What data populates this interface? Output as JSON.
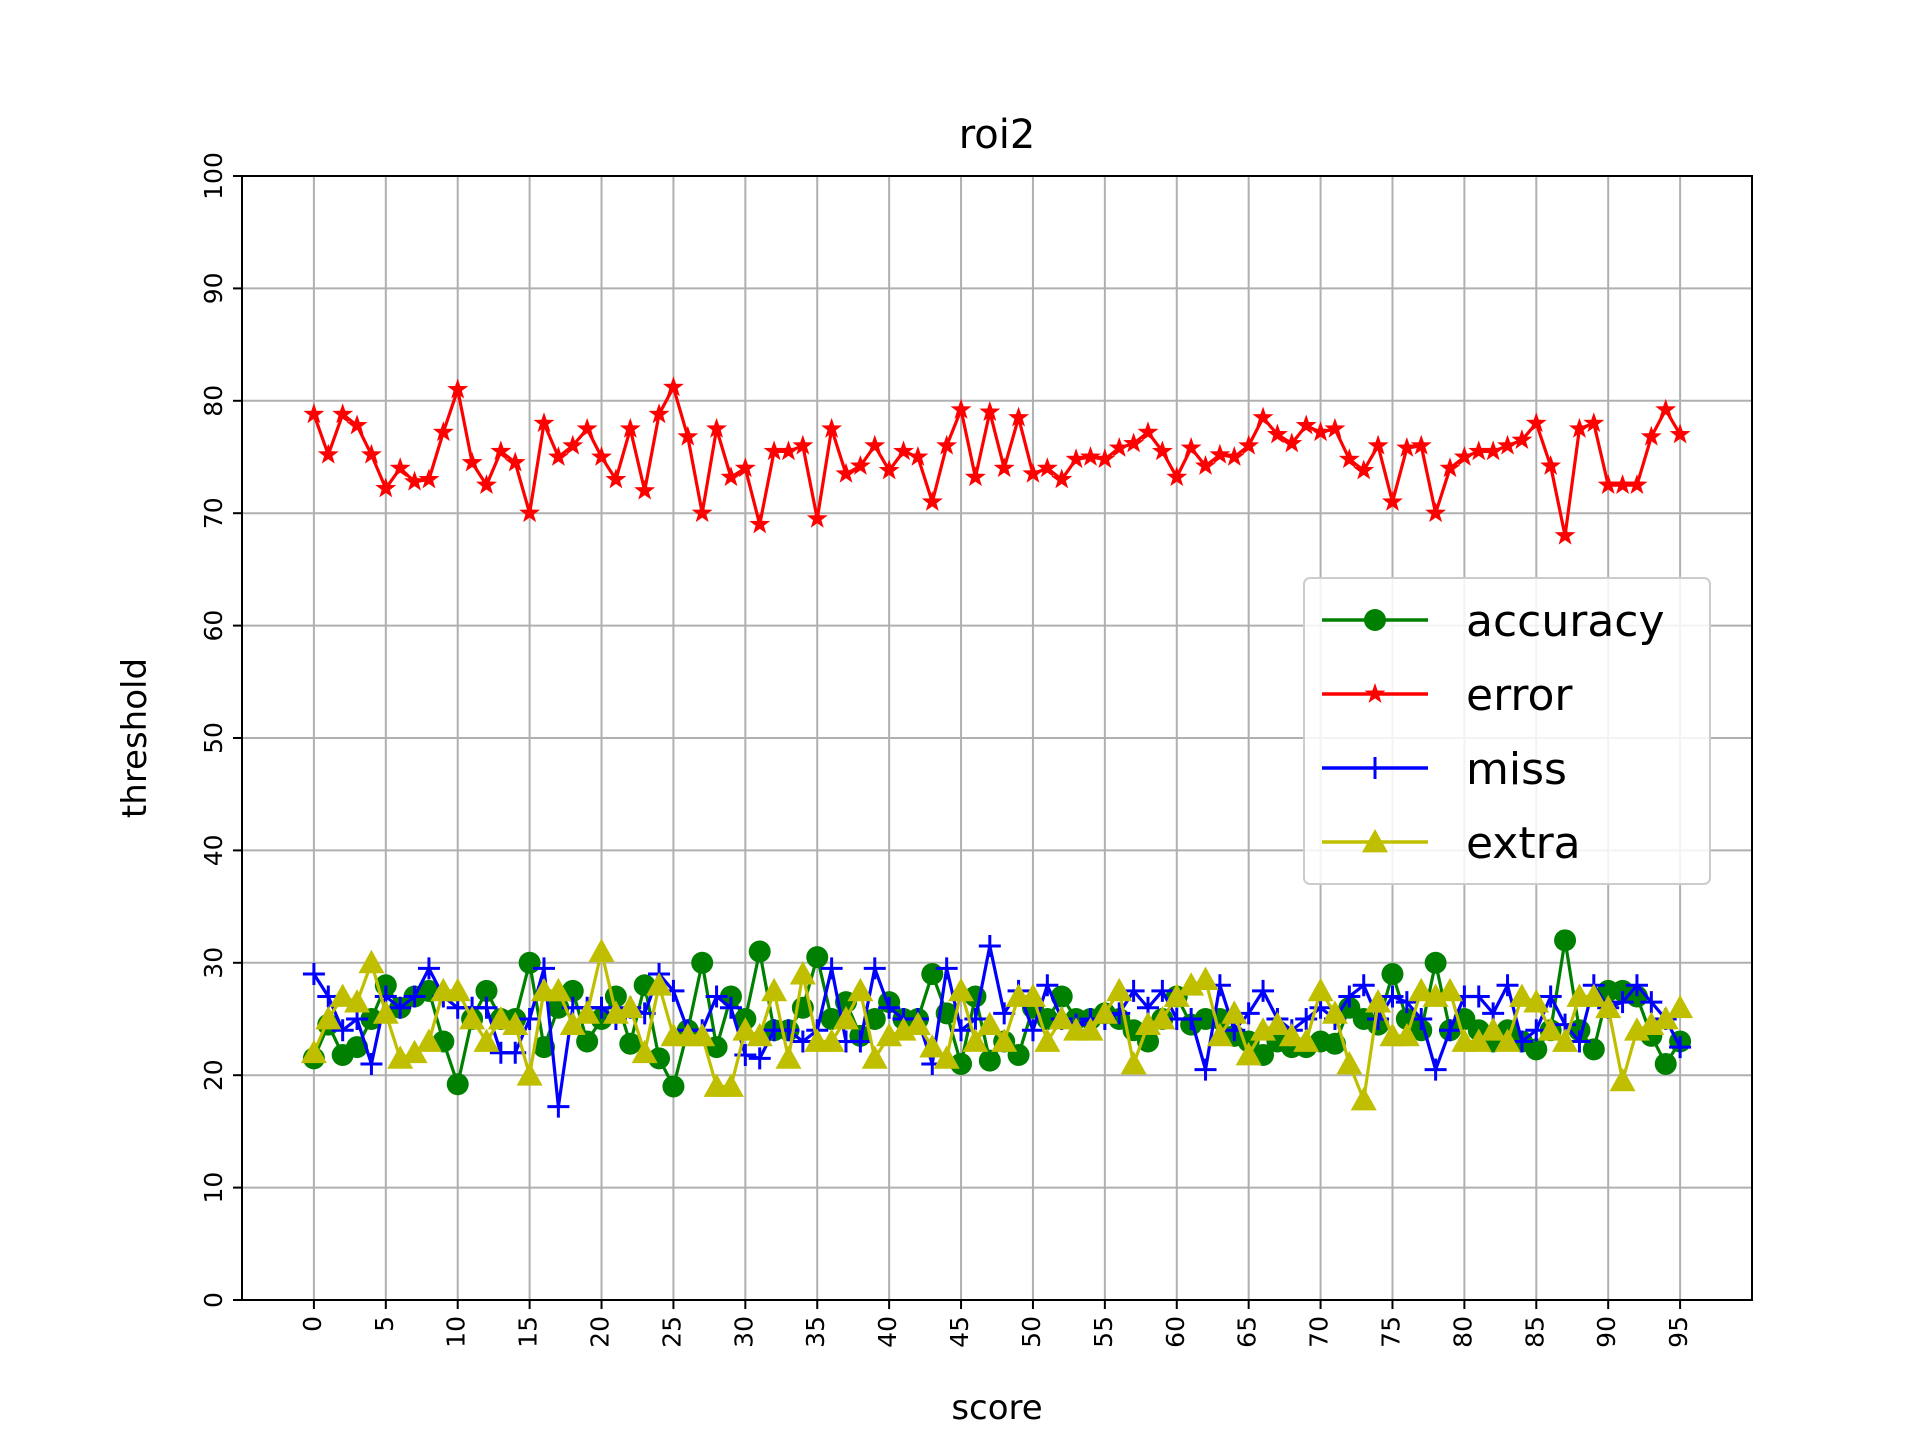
{
  "chart_data": {
    "type": "line",
    "title": "roi2",
    "xlabel": "score",
    "ylabel": "threshold",
    "xlim": [
      -5,
      100
    ],
    "ylim": [
      0,
      100
    ],
    "xticks": [
      0,
      5,
      10,
      15,
      20,
      25,
      30,
      35,
      40,
      45,
      50,
      55,
      60,
      65,
      70,
      75,
      80,
      85,
      90,
      95
    ],
    "yticks": [
      0,
      10,
      20,
      30,
      40,
      50,
      60,
      70,
      80,
      90,
      100
    ],
    "grid": true,
    "legend_position": "center-right",
    "x": [
      0,
      1,
      2,
      3,
      4,
      5,
      6,
      7,
      8,
      9,
      10,
      11,
      12,
      13,
      14,
      15,
      16,
      17,
      18,
      19,
      20,
      21,
      22,
      23,
      24,
      25,
      26,
      27,
      28,
      29,
      30,
      31,
      32,
      33,
      34,
      35,
      36,
      37,
      38,
      39,
      40,
      41,
      42,
      43,
      44,
      45,
      46,
      47,
      48,
      49,
      50,
      51,
      52,
      53,
      54,
      55,
      56,
      57,
      58,
      59,
      60,
      61,
      62,
      63,
      64,
      65,
      66,
      67,
      68,
      69,
      70,
      71,
      72,
      73,
      74,
      75,
      76,
      77,
      78,
      79,
      80,
      81,
      82,
      83,
      84,
      85,
      86,
      87,
      88,
      89,
      90,
      91,
      92,
      93,
      94,
      95
    ],
    "series": [
      {
        "name": "accuracy",
        "color": "#008000",
        "marker": "circle",
        "values": [
          21.5,
          24.5,
          21.8,
          22.5,
          25.0,
          28.0,
          26.0,
          27.0,
          27.5,
          23.0,
          19.2,
          25.0,
          27.5,
          25.0,
          25.0,
          30.0,
          22.5,
          26.0,
          27.5,
          23.0,
          25.0,
          27.0,
          22.8,
          28.0,
          21.5,
          19.0,
          24.0,
          30.0,
          22.5,
          27.0,
          25.0,
          31.0,
          24.0,
          24.0,
          26.0,
          30.5,
          25.0,
          26.5,
          23.5,
          25.0,
          26.5,
          25.0,
          25.0,
          29.0,
          25.5,
          21.0,
          27.0,
          21.3,
          23.0,
          21.8,
          26.0,
          25.0,
          27.0,
          25.0,
          25.0,
          25.5,
          25.0,
          24.0,
          23.0,
          25.0,
          27.0,
          24.5,
          25.0,
          25.0,
          23.5,
          23.0,
          21.8,
          23.0,
          22.5,
          22.5,
          23.0,
          22.8,
          26.0,
          25.0,
          24.5,
          29.0,
          25.0,
          24.0,
          30.0,
          24.0,
          25.0,
          24.0,
          23.0,
          24.0,
          23.0,
          22.3,
          24.0,
          32.0,
          24.0,
          22.3,
          27.5,
          27.5,
          27.0,
          23.5,
          21.0,
          23.0
        ]
      },
      {
        "name": "error",
        "color": "#ff0000",
        "marker": "star",
        "values": [
          78.8,
          75.2,
          78.8,
          77.8,
          75.2,
          72.2,
          74.0,
          72.8,
          73.0,
          77.2,
          81.0,
          74.5,
          72.5,
          75.5,
          74.5,
          70.0,
          78.0,
          75.0,
          76.0,
          77.5,
          75.0,
          73.0,
          77.5,
          72.0,
          78.8,
          81.2,
          76.8,
          70.0,
          77.5,
          73.2,
          74.0,
          69.0,
          75.5,
          75.5,
          76.0,
          69.5,
          77.5,
          73.5,
          74.2,
          76.0,
          73.8,
          75.5,
          75.0,
          71.0,
          76.0,
          79.2,
          73.2,
          79.0,
          74.0,
          78.5,
          73.5,
          74.0,
          73.0,
          74.8,
          75.0,
          74.8,
          75.8,
          76.2,
          77.2,
          75.5,
          73.2,
          75.8,
          74.2,
          75.2,
          75.0,
          76.0,
          78.5,
          77.0,
          76.2,
          77.8,
          77.2,
          77.5,
          74.8,
          73.8,
          76.0,
          71.0,
          75.8,
          76.0,
          70.0,
          74.0,
          75.0,
          75.5,
          75.5,
          76.0,
          76.5,
          78.0,
          74.2,
          68.0,
          77.5,
          78.0,
          72.5,
          72.5,
          72.5,
          76.8,
          79.2,
          77.0
        ]
      },
      {
        "name": "miss",
        "color": "#0000ff",
        "marker": "plus",
        "values": [
          29.0,
          27.0,
          24.0,
          25.0,
          21.0,
          27.0,
          26.0,
          27.0,
          29.5,
          27.0,
          26.0,
          26.0,
          26.0,
          22.0,
          22.0,
          25.0,
          29.5,
          17.2,
          26.0,
          26.0,
          26.0,
          25.0,
          26.0,
          25.5,
          29.0,
          27.5,
          24.0,
          24.0,
          27.0,
          26.0,
          21.8,
          21.5,
          24.0,
          24.0,
          23.0,
          24.0,
          29.5,
          23.0,
          23.0,
          29.5,
          26.0,
          25.0,
          25.0,
          21.0,
          29.5,
          24.0,
          25.0,
          31.5,
          25.5,
          27.5,
          24.0,
          28.0,
          25.0,
          24.5,
          25.0,
          25.0,
          25.5,
          27.5,
          26.0,
          27.5,
          25.0,
          25.0,
          20.5,
          28.0,
          24.0,
          25.5,
          27.5,
          25.0,
          24.0,
          25.0,
          26.0,
          25.0,
          27.0,
          28.0,
          25.0,
          27.0,
          26.5,
          25.0,
          20.5,
          24.0,
          27.0,
          27.0,
          25.5,
          28.0,
          23.0,
          24.0,
          27.0,
          24.5,
          23.0,
          28.0,
          26.0,
          26.5,
          28.0,
          26.5,
          25.0,
          22.5
        ]
      },
      {
        "name": "extra",
        "color": "#bfbf00",
        "marker": "triangle",
        "values": [
          22.0,
          25.0,
          27.0,
          26.5,
          30.0,
          25.5,
          21.5,
          22.0,
          23.0,
          27.5,
          27.5,
          25.0,
          23.0,
          25.0,
          24.5,
          20.0,
          27.5,
          27.5,
          24.5,
          25.5,
          31.0,
          25.5,
          26.0,
          22.0,
          28.0,
          23.5,
          23.5,
          23.5,
          19.0,
          19.0,
          24.0,
          23.5,
          27.5,
          21.5,
          29.0,
          23.0,
          23.0,
          25.0,
          27.5,
          21.5,
          23.5,
          24.0,
          24.5,
          22.5,
          21.5,
          27.5,
          23.0,
          24.5,
          23.0,
          27.0,
          27.0,
          23.0,
          25.0,
          24.0,
          24.0,
          25.5,
          27.5,
          21.0,
          24.5,
          25.0,
          27.0,
          28.0,
          28.5,
          23.5,
          25.5,
          21.8,
          24.0,
          24.5,
          23.5,
          23.0,
          27.5,
          25.5,
          21.0,
          17.8,
          26.5,
          23.5,
          23.5,
          27.5,
          27.0,
          27.5,
          23.0,
          23.0,
          24.0,
          23.0,
          27.0,
          26.5,
          24.0,
          23.0,
          27.0,
          27.0,
          26.0,
          19.5,
          24.0,
          24.5,
          25.0,
          26.0
        ]
      }
    ]
  }
}
